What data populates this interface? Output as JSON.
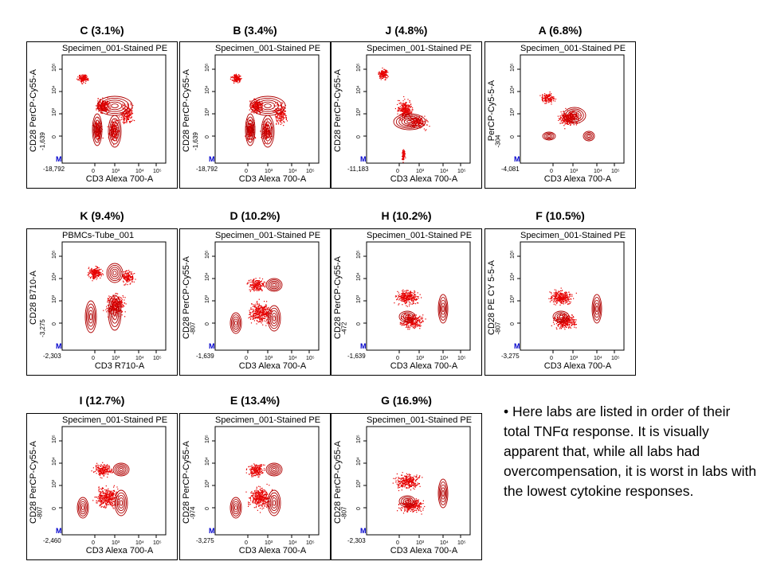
{
  "panels": [
    {
      "title": "C (3.1%)",
      "specimen": "Specimen_001-Stained PE",
      "ylabel": "CD28 PerCP-Cy55-A",
      "xlabel": "CD3 Alexa 700-A",
      "xmin": "-18,792",
      "ymin": "-1,639",
      "shape": "diag"
    },
    {
      "title": "B (3.4%)",
      "specimen": "Specimen_001-Stained PE",
      "ylabel": "CD28 PerCP-Cy55-A",
      "xlabel": "CD3 Alexa 700-A",
      "xmin": "-18,792",
      "ymin": "-1,639",
      "shape": "diag"
    },
    {
      "title": "J (4.8%)",
      "specimen": "Specimen_001-Stained PE",
      "ylabel": "CD28 PerCP-Cy55-A",
      "xlabel": "CD3 Alexa 700-A",
      "xmin": "-11,183",
      "ymin": "",
      "shape": "fan"
    },
    {
      "title": "A (6.8%)",
      "specimen": "Specimen_001-Stained PE",
      "ylabel": "PerCP-Cy5-5-A",
      "xlabel": "CD3 Alexa 700-A",
      "xmin": "-4,081",
      "ymin": "-304",
      "shape": "compact"
    },
    {
      "title": "K (9.4%)",
      "specimen": "PBMCs-Tube_001",
      "ylabel": "CD28 B710-A",
      "xlabel": "CD3 R710-A",
      "xmin": "-2,303",
      "ymin": "-3,275",
      "shape": "tall"
    },
    {
      "title": "D (10.2%)",
      "specimen": "Specimen_001-Stained PE",
      "ylabel": "CD28 PerCP-Cy55-A",
      "xlabel": "CD3 Alexa 700-A",
      "xmin": "-1,639",
      "ymin": "-807",
      "shape": "mid"
    },
    {
      "title": "H (10.2%)",
      "specimen": "Specimen_001-Stained PE",
      "ylabel": "CD28 PerCP-Cy55-A",
      "xlabel": "CD3 Alexa 700-A",
      "xmin": "-1,639",
      "ymin": "-472",
      "shape": "low"
    },
    {
      "title": "F (10.5%)",
      "specimen": "Specimen_001-Stained PE",
      "ylabel": "CD28 PE CY 5-5-A",
      "xlabel": "CD3 Alexa 700-A",
      "xmin": "-3,275",
      "ymin": "-807",
      "shape": "low"
    },
    {
      "title": "I (12.7%)",
      "specimen": "Specimen_001-Stained PE",
      "ylabel": "CD28 PerCP-Cy55-A",
      "xlabel": "CD3 Alexa 700-A",
      "xmin": "-2,460",
      "ymin": "-807",
      "shape": "mid"
    },
    {
      "title": "E (13.4%)",
      "specimen": "Specimen_001-Stained PE",
      "ylabel": "CD28 PerCP-Cy55-A",
      "xlabel": "CD3 Alexa 700-A",
      "xmin": "-3,275",
      "ymin": "-974",
      "shape": "mid"
    },
    {
      "title": "G (16.9%)",
      "specimen": "Specimen_001-Stained PE",
      "ylabel": "CD28 PerCP-Cy55-A",
      "xlabel": "CD3 Alexa 700-A",
      "xmin": "-2,303",
      "ymin": "-807",
      "shape": "low"
    }
  ],
  "axis": {
    "m_label": "M",
    "xticks": [
      "0",
      "10³",
      "10⁴",
      "10⁵"
    ],
    "yticks": [
      "0",
      "10³",
      "10⁴",
      "10⁵"
    ]
  },
  "colors": {
    "dots": "#e60000",
    "contour": "#b00000",
    "gate": "#0000cc"
  },
  "note": {
    "bullet": "•",
    "pre": "Here labs are listed in order of their total TNF",
    "alpha": "α",
    "post": " response.  It is visually apparent that, while all labs had overcompensation, it is worst in labs with the lowest cytokine responses."
  },
  "chart_data": {
    "type": "scatter",
    "title": "",
    "xlabel": "CD3 Alexa 700-A",
    "ylabel": "CD28 PerCP-Cy55-A",
    "series": [
      {
        "name": "C",
        "total_tnfa_pct": 3.1
      },
      {
        "name": "B",
        "total_tnfa_pct": 3.4
      },
      {
        "name": "J",
        "total_tnfa_pct": 4.8
      },
      {
        "name": "A",
        "total_tnfa_pct": 6.8
      },
      {
        "name": "K",
        "total_tnfa_pct": 9.4
      },
      {
        "name": "D",
        "total_tnfa_pct": 10.2
      },
      {
        "name": "H",
        "total_tnfa_pct": 10.2
      },
      {
        "name": "F",
        "total_tnfa_pct": 10.5
      },
      {
        "name": "I",
        "total_tnfa_pct": 12.7
      },
      {
        "name": "E",
        "total_tnfa_pct": 13.4
      },
      {
        "name": "G",
        "total_tnfa_pct": 16.9
      }
    ]
  }
}
